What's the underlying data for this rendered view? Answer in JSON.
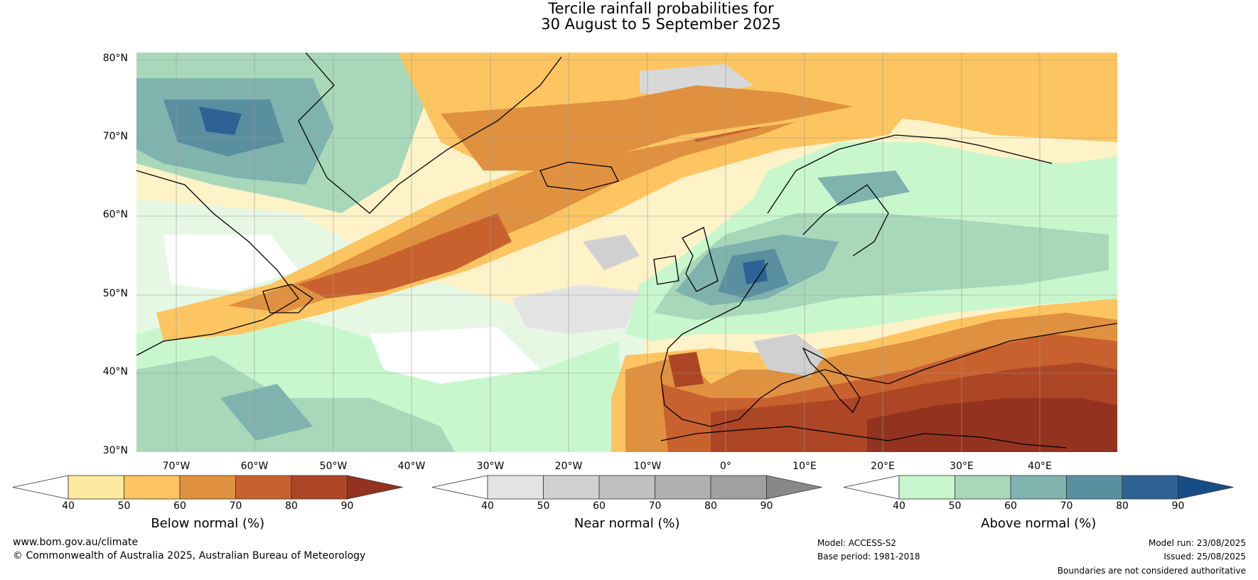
{
  "title": {
    "line1": "Tercile rainfall probabilities for",
    "line2": "30 August to 5 September 2025"
  },
  "axes": {
    "lat_labels": [
      "80°N",
      "70°N",
      "60°N",
      "50°N",
      "40°N",
      "30°N"
    ],
    "lon_labels": [
      "70°W",
      "60°W",
      "50°W",
      "40°W",
      "30°W",
      "20°W",
      "10°W",
      "0°",
      "10°E",
      "20°E",
      "30°E",
      "40°E"
    ]
  },
  "colorbars": [
    {
      "title": "Below normal (%)",
      "ticks": [
        "40",
        "50",
        "60",
        "70",
        "80",
        "90"
      ],
      "colors": [
        "#ffffff",
        "#fdeaa0",
        "#fdc561",
        "#e0913f",
        "#c9612e",
        "#ad4625",
        "#943220"
      ]
    },
    {
      "title": "Near normal (%)",
      "ticks": [
        "40",
        "50",
        "60",
        "70",
        "80",
        "90"
      ],
      "colors": [
        "#ffffff",
        "#e3e3e3",
        "#d0d0d0",
        "#c0c0c0",
        "#b0b0b0",
        "#a0a0a0",
        "#888888"
      ]
    },
    {
      "title": "Above normal (%)",
      "ticks": [
        "40",
        "50",
        "60",
        "70",
        "80",
        "90"
      ],
      "colors": [
        "#ffffff",
        "#c8f7cd",
        "#a8d8b9",
        "#80b3ae",
        "#5a8fa0",
        "#2f6294",
        "#164d86"
      ]
    }
  ],
  "footer": {
    "website": "www.bom.gov.au/climate",
    "copyright": "© Commonwealth of Australia 2025, Australian Bureau of Meteorology",
    "model": "Model: ACCESS-S2",
    "base_period": "Base period: 1981-2018",
    "model_run": "Model run: 23/08/2025",
    "issued": "Issued: 25/08/2025",
    "disclaimer": "Boundaries are not considered authoritative"
  }
}
